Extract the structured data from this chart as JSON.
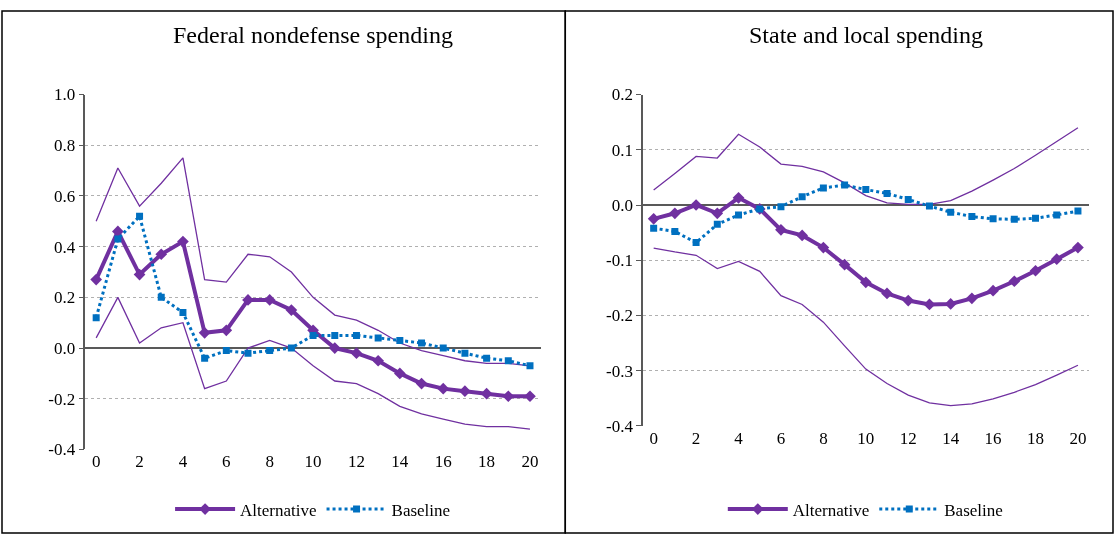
{
  "chart_data": [
    {
      "type": "line",
      "title": "Federal nondefense spending",
      "x": [
        0,
        1,
        2,
        3,
        4,
        5,
        6,
        7,
        8,
        9,
        10,
        11,
        12,
        13,
        14,
        15,
        16,
        17,
        18,
        19,
        20
      ],
      "series": [
        {
          "color": "#7030a0",
          "marker": "none",
          "line_style": "solid",
          "values": [
            0.5,
            0.71,
            0.56,
            0.65,
            0.75,
            0.27,
            0.26,
            0.37,
            0.36,
            0.3,
            0.2,
            0.13,
            0.11,
            0.07,
            0.02,
            -0.01,
            -0.03,
            -0.05,
            -0.06,
            -0.06,
            -0.07
          ]
        },
        {
          "color": "#7030a0",
          "marker": "none",
          "line_style": "solid",
          "values": [
            0.04,
            0.2,
            0.02,
            0.08,
            0.1,
            -0.16,
            -0.13,
            0.0,
            0.03,
            0.0,
            -0.07,
            -0.13,
            -0.14,
            -0.18,
            -0.23,
            -0.26,
            -0.28,
            -0.3,
            -0.31,
            -0.31,
            -0.32
          ]
        },
        {
          "name": "Alternative",
          "color": "#7030a0",
          "marker": "diamond",
          "line_style": "solid",
          "values": [
            0.27,
            0.46,
            0.29,
            0.37,
            0.42,
            0.06,
            0.07,
            0.19,
            0.19,
            0.15,
            0.07,
            0.0,
            -0.02,
            -0.05,
            -0.1,
            -0.14,
            -0.16,
            -0.17,
            -0.18,
            -0.19,
            -0.19
          ]
        },
        {
          "name": "Baseline",
          "color": "#0070c0",
          "marker": "square",
          "line_style": "dotted",
          "values": [
            0.12,
            0.43,
            0.52,
            0.2,
            0.14,
            -0.04,
            -0.01,
            -0.02,
            -0.01,
            0.0,
            0.05,
            0.05,
            0.05,
            0.04,
            0.03,
            0.02,
            0.0,
            -0.02,
            -0.04,
            -0.05,
            -0.07
          ]
        }
      ],
      "xlim": [
        -0.5,
        20.5
      ],
      "xticks": [
        0,
        2,
        4,
        6,
        8,
        10,
        12,
        14,
        16,
        18,
        20
      ],
      "ylim": [
        -0.4,
        1.0
      ],
      "yticks": [
        {
          "value": -0.4,
          "label": "-0.4"
        },
        {
          "value": -0.2,
          "label": "-0.2"
        },
        {
          "value": 0,
          "label": "0.0"
        },
        {
          "value": 0.2,
          "label": "0.2"
        },
        {
          "value": 0.4,
          "label": "0.4"
        },
        {
          "value": 0.6,
          "label": "0.6"
        },
        {
          "value": 0.8,
          "label": "0.8"
        },
        {
          "value": 1.0,
          "label": "1.0"
        }
      ],
      "grid": "y",
      "legend": "bottom"
    },
    {
      "type": "line",
      "title": "State and local spending",
      "x": [
        0,
        1,
        2,
        3,
        4,
        5,
        6,
        7,
        8,
        9,
        10,
        11,
        12,
        13,
        14,
        15,
        16,
        17,
        18,
        19,
        20
      ],
      "series": [
        {
          "color": "#7030a0",
          "marker": "none",
          "line_style": "solid",
          "values": [
            0.027,
            0.057,
            0.088,
            0.085,
            0.128,
            0.105,
            0.074,
            0.07,
            0.06,
            0.04,
            0.017,
            0.004,
            0.001,
            0.001,
            0.008,
            0.025,
            0.045,
            0.066,
            0.09,
            0.115,
            0.14
          ]
        },
        {
          "color": "#7030a0",
          "marker": "none",
          "line_style": "solid",
          "values": [
            -0.078,
            -0.085,
            -0.091,
            -0.115,
            -0.102,
            -0.12,
            -0.164,
            -0.18,
            -0.212,
            -0.255,
            -0.297,
            -0.323,
            -0.344,
            -0.358,
            -0.363,
            -0.36,
            -0.351,
            -0.339,
            -0.325,
            -0.308,
            -0.29
          ]
        },
        {
          "name": "Alternative",
          "color": "#7030a0",
          "marker": "diamond",
          "line_style": "solid",
          "values": [
            -0.025,
            -0.015,
            0.0,
            -0.015,
            0.013,
            -0.007,
            -0.045,
            -0.055,
            -0.077,
            -0.108,
            -0.14,
            -0.16,
            -0.173,
            -0.18,
            -0.179,
            -0.169,
            -0.155,
            -0.138,
            -0.119,
            -0.098,
            -0.077
          ]
        },
        {
          "name": "Baseline",
          "color": "#0070c0",
          "marker": "square",
          "line_style": "dotted",
          "values": [
            -0.042,
            -0.048,
            -0.068,
            -0.035,
            -0.018,
            -0.007,
            -0.003,
            0.015,
            0.031,
            0.036,
            0.028,
            0.021,
            0.01,
            -0.002,
            -0.013,
            -0.021,
            -0.025,
            -0.026,
            -0.024,
            -0.018,
            -0.011
          ]
        }
      ],
      "xlim": [
        -0.5,
        20.5
      ],
      "xticks": [
        0,
        2,
        4,
        6,
        8,
        10,
        12,
        14,
        16,
        18,
        20
      ],
      "ylim": [
        -0.4,
        0.2
      ],
      "yticks": [
        {
          "value": -0.4,
          "label": "-0.4"
        },
        {
          "value": -0.3,
          "label": "-0.3"
        },
        {
          "value": -0.2,
          "label": "-0.2"
        },
        {
          "value": -0.1,
          "label": "-0.1"
        },
        {
          "value": 0,
          "label": "0.0"
        },
        {
          "value": 0.1,
          "label": "0.1"
        },
        {
          "value": 0.2,
          "label": "0.2"
        }
      ],
      "grid": "y",
      "legend": "bottom"
    }
  ]
}
